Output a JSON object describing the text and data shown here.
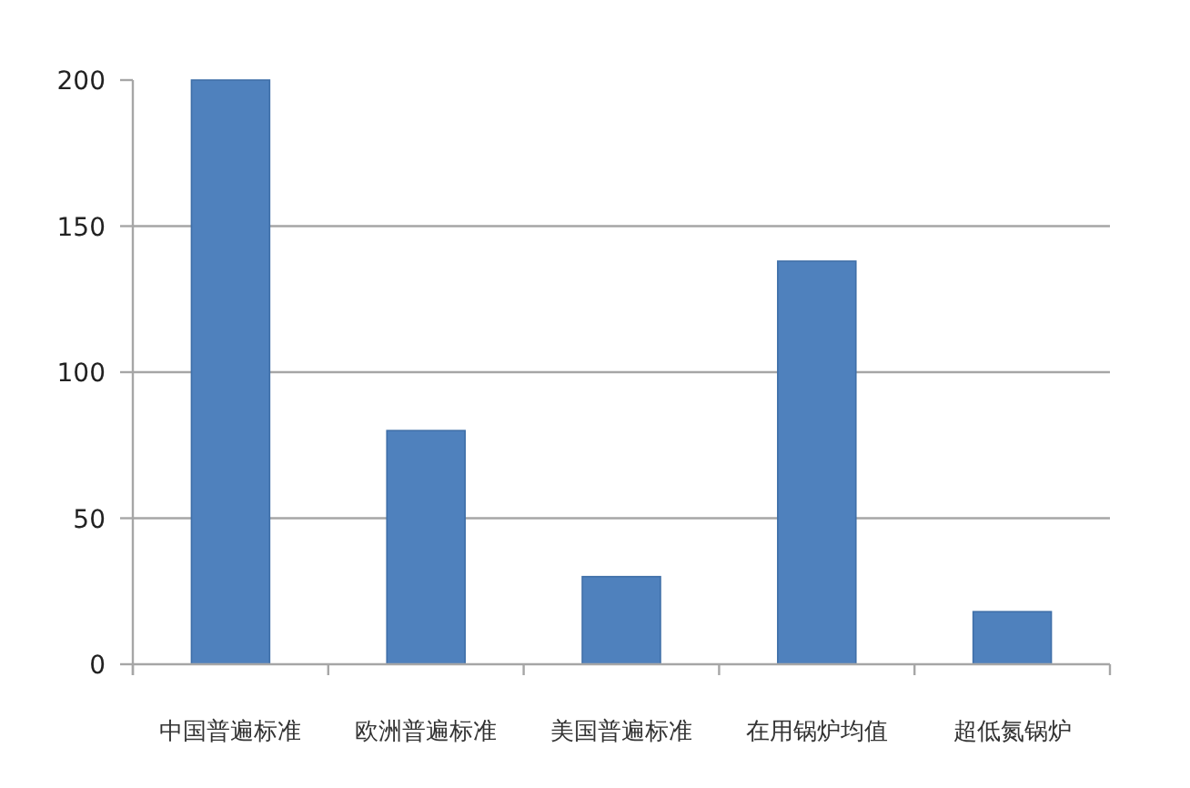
{
  "chart_data": {
    "type": "bar",
    "categories": [
      "中国普遍标准",
      "欧洲普遍标准",
      "美国普遍标准",
      "在用锅炉均值",
      "超低氮锅炉"
    ],
    "values": [
      200,
      80,
      30,
      138,
      18
    ],
    "color": "#4f81bd",
    "ylim": [
      0,
      200
    ],
    "yticks": [
      0,
      50,
      100,
      150,
      200
    ],
    "grid": "y"
  }
}
